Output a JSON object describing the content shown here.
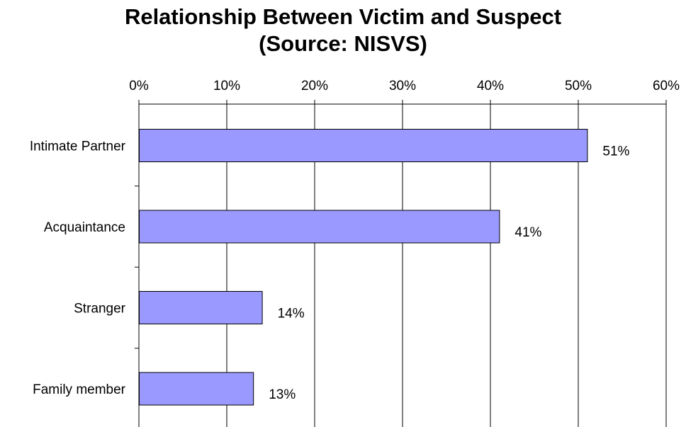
{
  "chart_data": {
    "type": "bar",
    "orientation": "horizontal",
    "title": "Relationship Between Victim and Suspect",
    "subtitle": "(Source: NISVS)",
    "categories": [
      "Intimate Partner",
      "Acquaintance",
      "Stranger",
      "Family member"
    ],
    "values": [
      51,
      41,
      14,
      13
    ],
    "value_labels": [
      "51%",
      "41%",
      "14%",
      "13%"
    ],
    "xlim": [
      0,
      60
    ],
    "x_ticks": [
      0,
      10,
      20,
      30,
      40,
      50,
      60
    ],
    "x_tick_labels": [
      "0%",
      "10%",
      "20%",
      "30%",
      "40%",
      "50%",
      "60%"
    ],
    "x_axis_position": "top",
    "grid": "vertical",
    "legend": "none",
    "bar_color": "#9999ff",
    "bar_edge_color": "#000000"
  }
}
